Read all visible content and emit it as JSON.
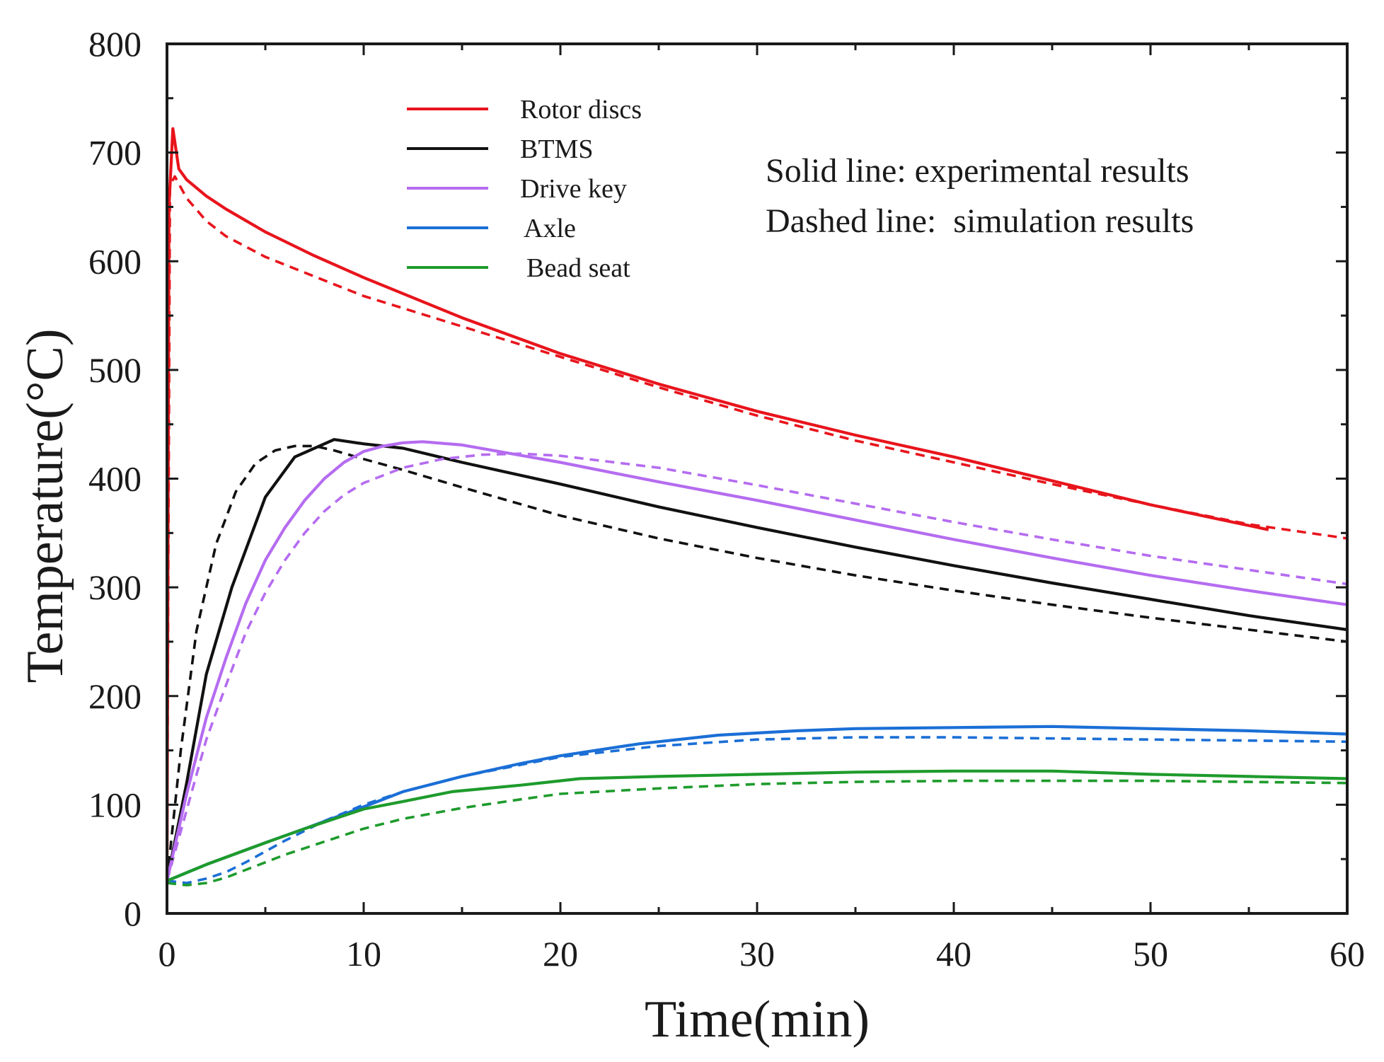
{
  "chart_data": {
    "type": "line",
    "xlabel": "Time(min)",
    "ylabel": "Temperature(°C)",
    "xlim": [
      0,
      60
    ],
    "ylim": [
      0,
      800
    ],
    "xticks": [
      0,
      10,
      20,
      30,
      40,
      50,
      60
    ],
    "yticks": [
      0,
      100,
      200,
      300,
      400,
      500,
      600,
      700,
      800
    ],
    "xtick_labels": [
      "0",
      "10",
      "20",
      "30",
      "40",
      "50",
      "60"
    ],
    "ytick_labels": [
      "0",
      "100",
      "200",
      "300",
      "400",
      "500",
      "600",
      "700",
      "800"
    ],
    "grid": false,
    "legend_position": "top-left",
    "notes": [
      "Solid line: experimental results",
      "Dashed line:  simulation results"
    ],
    "series": [
      {
        "name": "Rotor discs",
        "color": "#e8141c",
        "experimental": {
          "x": [
            0,
            0.1,
            0.3,
            0.6,
            1,
            2,
            3,
            5,
            7.5,
            10,
            15,
            20,
            25,
            30,
            35,
            40,
            45,
            50,
            56
          ],
          "y": [
            30,
            650,
            722,
            685,
            675,
            660,
            648,
            627,
            605,
            585,
            548,
            515,
            487,
            462,
            440,
            420,
            398,
            376,
            353
          ]
        },
        "simulation": {
          "x": [
            0,
            0.15,
            0.4,
            1,
            2,
            3,
            5,
            7.5,
            10,
            15,
            20,
            25,
            30,
            35,
            40,
            45,
            50,
            55,
            60
          ],
          "y": [
            30,
            670,
            678,
            658,
            637,
            623,
            604,
            586,
            568,
            540,
            512,
            484,
            458,
            435,
            415,
            395,
            376,
            358,
            345
          ]
        }
      },
      {
        "name": "BTMS",
        "color": "#111111",
        "experimental": {
          "x": [
            0,
            1,
            2,
            3.3,
            5,
            6.5,
            8.5,
            10,
            12,
            15,
            20,
            25,
            30,
            35,
            40,
            45,
            50,
            55,
            60
          ],
          "y": [
            30,
            120,
            220,
            300,
            383,
            420,
            436,
            432,
            428,
            415,
            395,
            374,
            355,
            337,
            320,
            304,
            289,
            274,
            261
          ]
        },
        "simulation": {
          "x": [
            0,
            0.7,
            1.5,
            2.5,
            3.5,
            4.5,
            5.5,
            6.5,
            7.5,
            8.5,
            10,
            12,
            15,
            20,
            25,
            30,
            35,
            40,
            45,
            50,
            55,
            60
          ],
          "y": [
            30,
            150,
            260,
            340,
            388,
            414,
            426,
            430,
            430,
            426,
            418,
            408,
            392,
            366,
            345,
            327,
            311,
            297,
            284,
            272,
            261,
            250
          ]
        }
      },
      {
        "name": "Drive key",
        "color": "#b56cf0",
        "experimental": {
          "x": [
            0,
            1,
            2,
            3,
            4,
            5,
            6,
            7,
            8,
            9,
            10,
            11,
            12,
            13,
            15,
            20,
            25,
            30,
            35,
            40,
            45,
            50,
            55,
            60
          ],
          "y": [
            30,
            110,
            180,
            235,
            285,
            325,
            355,
            380,
            400,
            415,
            425,
            430,
            433,
            434,
            431,
            415,
            397,
            380,
            362,
            344,
            327,
            311,
            297,
            284
          ]
        },
        "simulation": {
          "x": [
            0,
            1,
            2,
            3,
            4,
            5,
            6,
            7,
            8,
            9,
            10,
            12,
            14,
            16,
            18,
            20,
            25,
            30,
            35,
            40,
            45,
            50,
            55,
            60
          ],
          "y": [
            30,
            95,
            160,
            210,
            258,
            295,
            325,
            350,
            370,
            385,
            396,
            410,
            418,
            422,
            423,
            421,
            410,
            394,
            377,
            360,
            344,
            329,
            316,
            303
          ]
        }
      },
      {
        "name": "Axle",
        "color": "#1b6fd6",
        "experimental": {
          "x": [
            0,
            2,
            5,
            7,
            10,
            12,
            15,
            18,
            20,
            24,
            28,
            32,
            35,
            40,
            45,
            50,
            55,
            60
          ],
          "y": [
            30,
            45,
            65,
            78,
            98,
            112,
            126,
            138,
            145,
            156,
            164,
            168,
            170,
            171,
            172,
            170,
            168,
            165
          ]
        },
        "simulation": {
          "x": [
            0,
            1,
            2,
            3,
            4,
            5,
            6,
            8,
            10,
            12,
            15,
            20,
            25,
            30,
            35,
            40,
            45,
            50,
            55,
            60
          ],
          "y": [
            30,
            28,
            32,
            38,
            47,
            57,
            67,
            85,
            100,
            112,
            126,
            144,
            154,
            160,
            162,
            162,
            161,
            160,
            159,
            158
          ]
        }
      },
      {
        "name": "Bead seat",
        "color": "#1e9b2c",
        "experimental": {
          "x": [
            0,
            2,
            5,
            7,
            10,
            12,
            14.5,
            18,
            21,
            25,
            30,
            35,
            40,
            45,
            50,
            55,
            60
          ],
          "y": [
            30,
            45,
            65,
            78,
            96,
            103,
            112,
            118,
            124,
            126,
            128,
            130,
            131,
            131,
            128,
            126,
            124
          ]
        },
        "simulation": {
          "x": [
            0,
            1,
            2,
            3,
            4,
            5,
            6,
            8,
            10,
            12,
            15,
            18,
            20,
            25,
            30,
            35,
            40,
            45,
            50,
            55,
            60
          ],
          "y": [
            28,
            26,
            28,
            33,
            40,
            47,
            54,
            66,
            78,
            87,
            97,
            105,
            110,
            115,
            119,
            121,
            122,
            122,
            122,
            121,
            120
          ]
        }
      }
    ]
  }
}
